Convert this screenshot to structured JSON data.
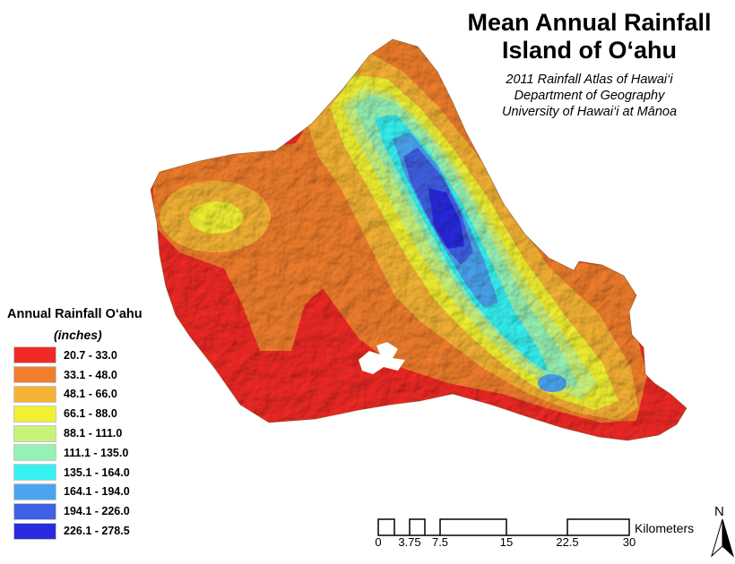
{
  "title": {
    "line1": "Mean Annual Rainfall",
    "line2": "Island of O‘ahu"
  },
  "subtitle": {
    "line1": "2011 Rainfall Atlas of Hawai‘i",
    "line2": "Department of Geography",
    "line3": "University of Hawai‘i at Mānoa"
  },
  "legend": {
    "title": "Annual Rainfall O‘ahu",
    "units": "(inches)",
    "classes": [
      {
        "label": "20.7 - 33.0",
        "color": "#f02a26"
      },
      {
        "label": "33.1 - 48.0",
        "color": "#f07e2d"
      },
      {
        "label": "48.1 - 66.0",
        "color": "#f5b335"
      },
      {
        "label": "66.1 - 88.0",
        "color": "#f1f133"
      },
      {
        "label": "88.1 - 111.0",
        "color": "#c9f27a"
      },
      {
        "label": "111.1 - 135.0",
        "color": "#96f2b4"
      },
      {
        "label": "135.1 - 164.0",
        "color": "#36f1f1"
      },
      {
        "label": "164.1 - 194.0",
        "color": "#4ba4ee"
      },
      {
        "label": "194.1 - 226.0",
        "color": "#4060e5"
      },
      {
        "label": "226.1 - 278.5",
        "color": "#2a2ae0"
      }
    ]
  },
  "scale_bar": {
    "units": "Kilometers",
    "ticks": [
      "0",
      "3.75",
      "7.5",
      "15",
      "22.5",
      "30"
    ]
  },
  "north_arrow": {
    "label": "N"
  }
}
